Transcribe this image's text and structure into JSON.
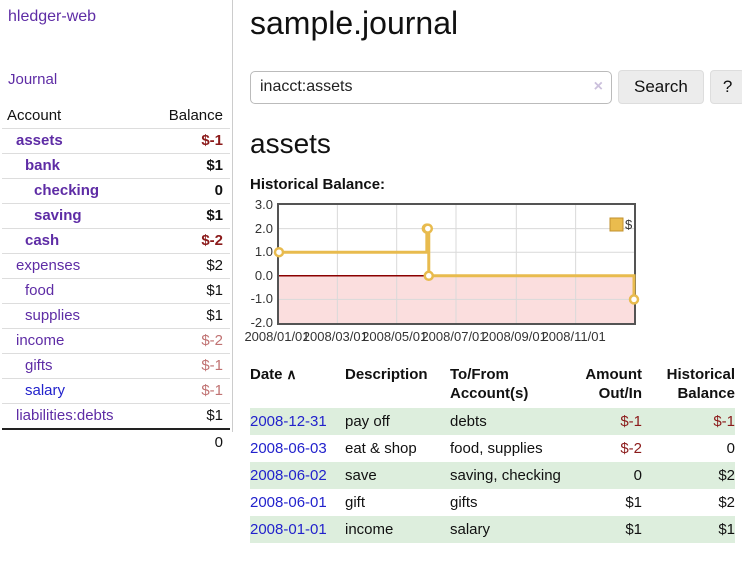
{
  "app": {
    "brand": "hledger-web",
    "nav": {
      "journal": "Journal"
    }
  },
  "colors": {
    "link_purple": "#5e2ca5",
    "link_blue": "#2222cc",
    "negative_strong": "#8b1a1a",
    "negative_muted": "#c07272",
    "row_green": "#ddeedd",
    "chart_line": "#e8bb4e",
    "chart_marker_fill": "#ffffff",
    "chart_negative_fill": "#fbdede",
    "chart_zero_line": "#8b0000",
    "chart_grid": "#d9d9d9",
    "chart_border": "#545454",
    "legend_swatch_fill": "#eabc4e",
    "legend_swatch_border": "#c2912e"
  },
  "sidebar": {
    "accounts": {
      "headers": {
        "account": "Account",
        "balance": "Balance"
      },
      "rows": [
        {
          "label": "assets",
          "depth": 1,
          "name_class": "purple bold",
          "balance": "$-1",
          "bal_class": "neg bold"
        },
        {
          "label": "bank",
          "depth": 2,
          "name_class": "purple bold",
          "balance": "$1",
          "bal_class": "bold"
        },
        {
          "label": "checking",
          "depth": 3,
          "name_class": "purple bold",
          "balance": "0",
          "bal_class": "bold"
        },
        {
          "label": "saving",
          "depth": 3,
          "name_class": "purple bold",
          "balance": "$1",
          "bal_class": "bold"
        },
        {
          "label": "cash",
          "depth": 2,
          "name_class": "purple bold",
          "balance": "$-2",
          "bal_class": "neg bold"
        },
        {
          "label": "expenses",
          "depth": 1,
          "name_class": "purple",
          "balance": "$2",
          "bal_class": ""
        },
        {
          "label": "food",
          "depth": 2,
          "name_class": "purple",
          "balance": "$1",
          "bal_class": ""
        },
        {
          "label": "supplies",
          "depth": 2,
          "name_class": "purple",
          "balance": "$1",
          "bal_class": ""
        },
        {
          "label": "income",
          "depth": 1,
          "name_class": "purple",
          "balance": "$-2",
          "bal_class": "negmuted"
        },
        {
          "label": "gifts",
          "depth": 2,
          "name_class": "purple",
          "balance": "$-1",
          "bal_class": "negmuted"
        },
        {
          "label": "salary",
          "depth": 2,
          "name_class": "blue",
          "balance": "$-1",
          "bal_class": "negmuted"
        },
        {
          "label": "liabilities:debts",
          "depth": 1,
          "name_class": "purple",
          "balance": "$1",
          "bal_class": "",
          "last": true
        }
      ],
      "total": "0"
    }
  },
  "main": {
    "title": "sample.journal",
    "search": {
      "value": "inacct:assets",
      "clear_icon": "×",
      "search_button": "Search",
      "help_button": "?"
    },
    "account_heading": "assets",
    "chart_label": "Historical Balance:",
    "register": {
      "headers": [
        {
          "label": "Date",
          "sort_icon": "∧",
          "align": "l"
        },
        {
          "label": "Description",
          "align": "l"
        },
        {
          "label": "To/From Account(s)",
          "align": "l"
        },
        {
          "label": "Amount Out/In",
          "align": "r"
        },
        {
          "label": "Historical Balance",
          "align": "r"
        }
      ],
      "rows": [
        {
          "date": "2008-12-31",
          "description": "pay off",
          "accounts": "debts",
          "amount": "$-1",
          "amount_class": "neg",
          "balance": "$-1",
          "balance_class": "neg",
          "green": true
        },
        {
          "date": "2008-06-03",
          "description": "eat & shop",
          "accounts": "food, supplies",
          "amount": "$-2",
          "amount_class": "neg",
          "balance": "0",
          "balance_class": "",
          "green": false
        },
        {
          "date": "2008-06-02",
          "description": "save",
          "accounts": "saving, checking",
          "amount": "0",
          "amount_class": "",
          "balance": "$2",
          "balance_class": "",
          "green": true
        },
        {
          "date": "2008-06-01",
          "description": "gift",
          "accounts": "gifts",
          "amount": "$1",
          "amount_class": "",
          "balance": "$2",
          "balance_class": "",
          "green": false
        },
        {
          "date": "2008-01-01",
          "description": "income",
          "accounts": "salary",
          "amount": "$1",
          "amount_class": "",
          "balance": "$1",
          "balance_class": "",
          "green": true
        }
      ]
    }
  },
  "chart_data": {
    "type": "line",
    "step": true,
    "title": "Historical Balance",
    "series": [
      {
        "name": "$",
        "points": [
          [
            "2008-01-01",
            1
          ],
          [
            "2008-06-01",
            2
          ],
          [
            "2008-06-02",
            2
          ],
          [
            "2008-06-03",
            0
          ],
          [
            "2008-12-31",
            -1
          ]
        ]
      }
    ],
    "x_range": [
      "2008-01-01",
      "2008-12-31"
    ],
    "x_ticks": [
      "2008/01/01",
      "2008/03/01",
      "2008/05/01",
      "2008/07/01",
      "2008/09/01",
      "2008/11/01"
    ],
    "y_ticks": [
      3.0,
      2.0,
      1.0,
      0.0,
      -1.0,
      -2.0
    ],
    "ylim": [
      -2,
      3
    ],
    "grid": true,
    "legend": {
      "label": "$",
      "position": "top-right"
    },
    "negative_region_shaded": true
  }
}
